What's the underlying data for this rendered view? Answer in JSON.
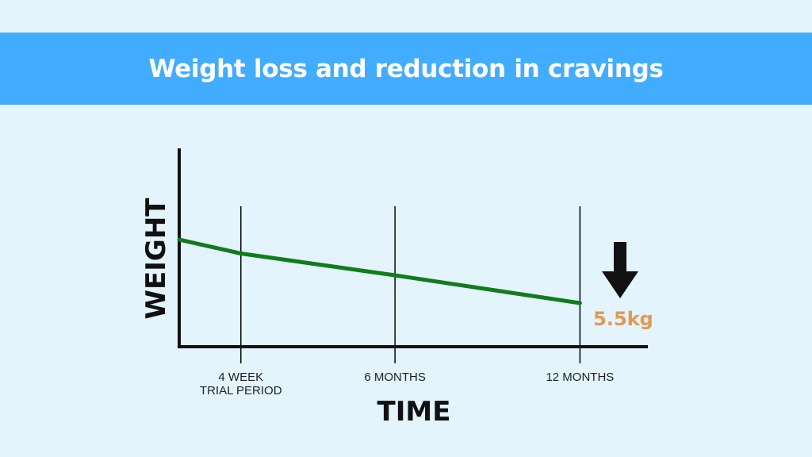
{
  "header": {
    "title": "Weight loss and reduction in cravings"
  },
  "colors": {
    "banner": "#42adff",
    "background": "#e3f4fd",
    "line": "#117c1c",
    "annotation": "#e49a4e",
    "axis": "#111111"
  },
  "chart_data": {
    "type": "line",
    "xlabel": "TIME",
    "ylabel": "WEIGHT",
    "x_ticks": [
      {
        "pos": 1,
        "line1": "4 WEEK",
        "line2": "TRIAL PERIOD"
      },
      {
        "pos": 6,
        "line1": "6 MONTHS",
        "line2": ""
      },
      {
        "pos": 12,
        "line1": "12 MONTHS",
        "line2": ""
      }
    ],
    "xlim": [
      -1,
      15
    ],
    "ylim": [
      0,
      10
    ],
    "series": [
      {
        "x": [
          -1,
          1,
          6,
          12
        ],
        "y": [
          5.4,
          4.7,
          3.6,
          2.2
        ]
      }
    ],
    "annotation": {
      "text": "5.5kg",
      "arrow": "down-arrow-icon",
      "x": 12
    },
    "grid": false
  }
}
